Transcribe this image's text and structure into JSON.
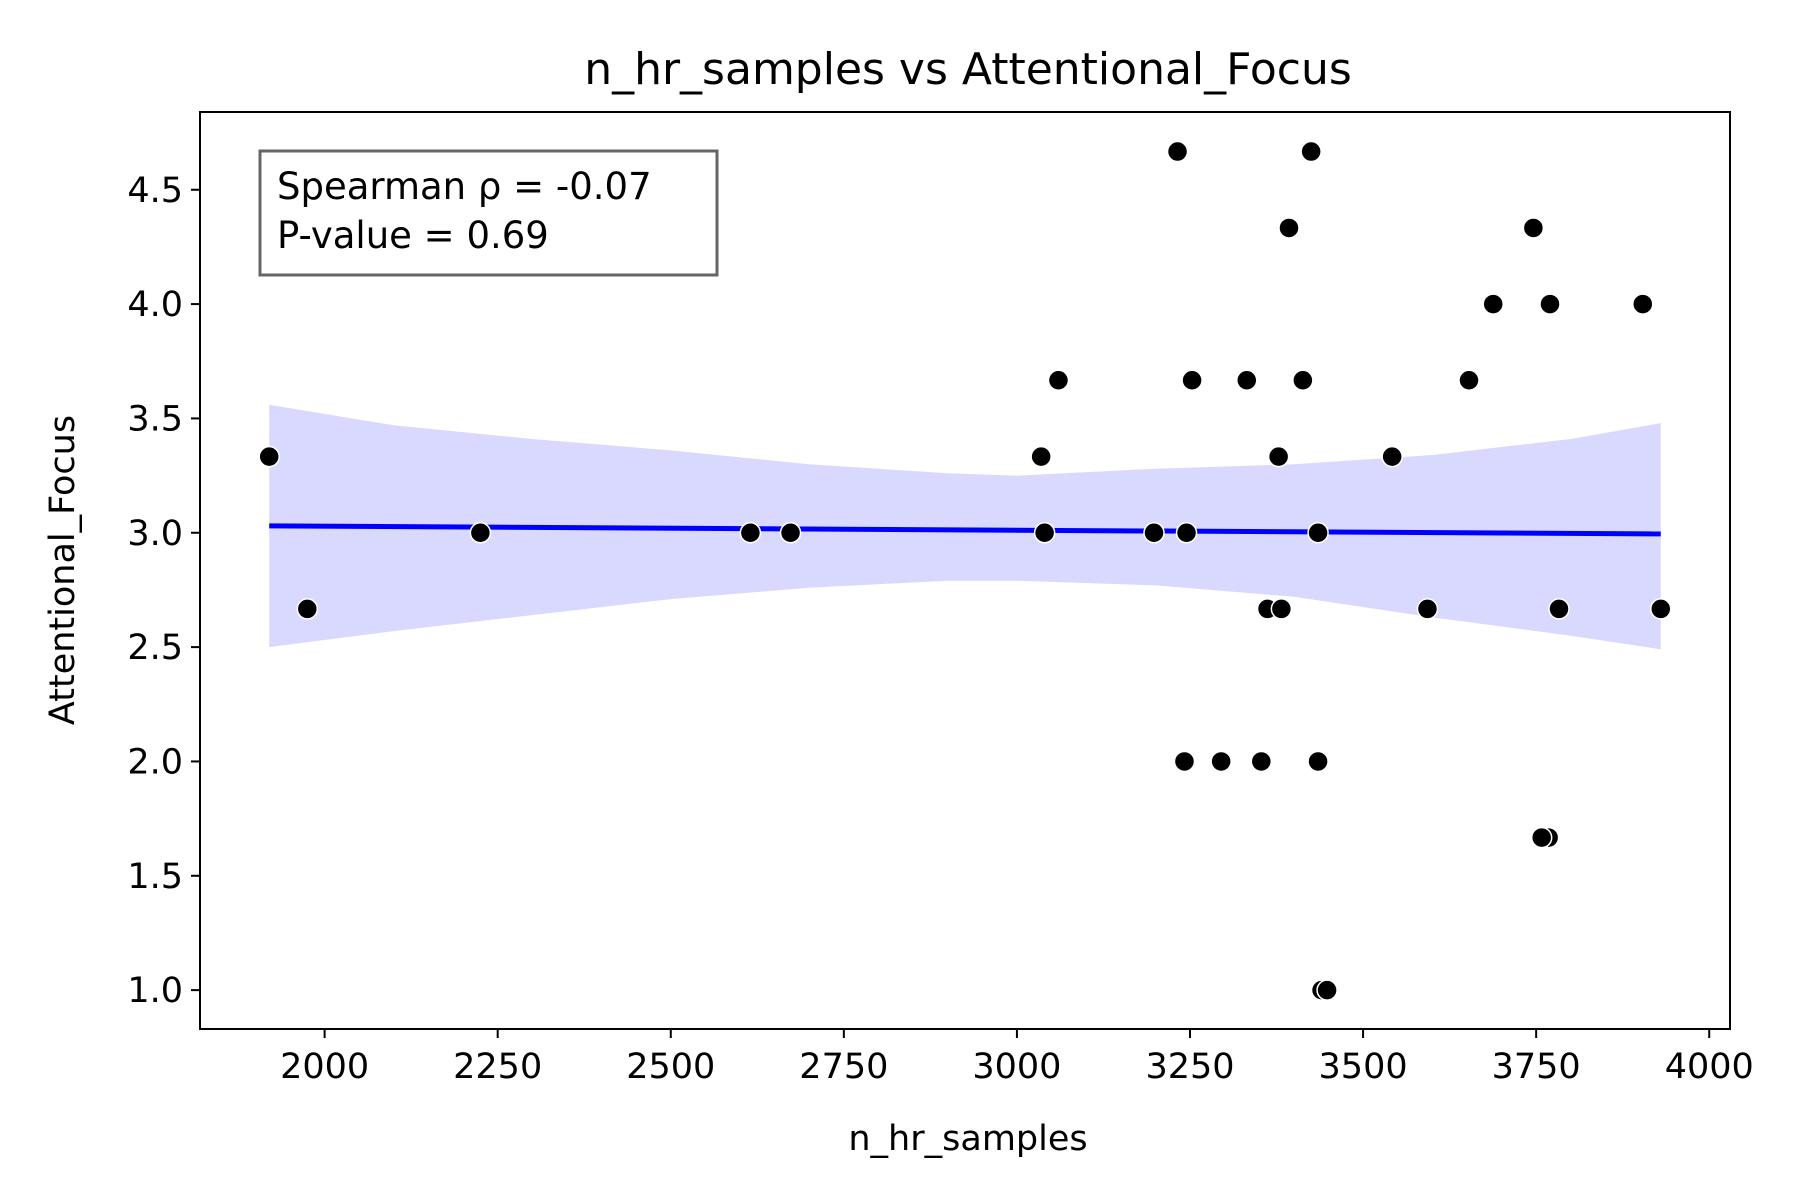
{
  "chart_data": {
    "type": "scatter",
    "title": "n_hr_samples vs Attentional_Focus",
    "xlabel": "n_hr_samples",
    "ylabel": "Attentional_Focus",
    "xlim": [
      1820,
      4030
    ],
    "ylim": [
      0.83,
      4.84
    ],
    "xticks": [
      2000,
      2250,
      2500,
      2750,
      3000,
      3250,
      3500,
      3750,
      4000
    ],
    "yticks": [
      1.0,
      1.5,
      2.0,
      2.5,
      3.0,
      3.5,
      4.0,
      4.5
    ],
    "xtick_labels": [
      "2000",
      "2250",
      "2500",
      "2750",
      "3000",
      "3250",
      "3500",
      "3750",
      "4000"
    ],
    "ytick_labels": [
      "1.0",
      "1.5",
      "2.0",
      "2.5",
      "3.0",
      "3.5",
      "4.0",
      "4.5"
    ],
    "grid": false,
    "colors": {
      "points": "#000000",
      "regression_line": "#0000ff",
      "confidence_band": "#d9d9ff",
      "annotation_border": "#666666"
    },
    "annotation": {
      "line1": "Spearman ρ = -0.07",
      "line2": "P-value = 0.69",
      "placement": "top-left"
    },
    "points": [
      {
        "x": 1920,
        "y": 3.333
      },
      {
        "x": 1975,
        "y": 2.667
      },
      {
        "x": 2225,
        "y": 3.0
      },
      {
        "x": 2615,
        "y": 3.0
      },
      {
        "x": 2673,
        "y": 3.0
      },
      {
        "x": 3035,
        "y": 3.333
      },
      {
        "x": 3060,
        "y": 3.667
      },
      {
        "x": 3040,
        "y": 3.0
      },
      {
        "x": 3232,
        "y": 4.667
      },
      {
        "x": 3198,
        "y": 3.0
      },
      {
        "x": 3245,
        "y": 3.0
      },
      {
        "x": 3253,
        "y": 3.667
      },
      {
        "x": 3242,
        "y": 2.0
      },
      {
        "x": 3295,
        "y": 2.0
      },
      {
        "x": 3332,
        "y": 3.667
      },
      {
        "x": 3353,
        "y": 2.0
      },
      {
        "x": 3362,
        "y": 2.667
      },
      {
        "x": 3378,
        "y": 3.333
      },
      {
        "x": 3382,
        "y": 2.667
      },
      {
        "x": 3393,
        "y": 4.333
      },
      {
        "x": 3413,
        "y": 3.667
      },
      {
        "x": 3425,
        "y": 4.667
      },
      {
        "x": 3435,
        "y": 3.0
      },
      {
        "x": 3435,
        "y": 2.0
      },
      {
        "x": 3440,
        "y": 1.0
      },
      {
        "x": 3448,
        "y": 1.0
      },
      {
        "x": 3542,
        "y": 3.333
      },
      {
        "x": 3593,
        "y": 2.667
      },
      {
        "x": 3653,
        "y": 3.667
      },
      {
        "x": 3688,
        "y": 4.0
      },
      {
        "x": 3746,
        "y": 4.333
      },
      {
        "x": 3768,
        "y": 1.667
      },
      {
        "x": 3758,
        "y": 1.667
      },
      {
        "x": 3770,
        "y": 4.0
      },
      {
        "x": 3783,
        "y": 2.667
      },
      {
        "x": 3904,
        "y": 4.0
      },
      {
        "x": 3930,
        "y": 2.667
      }
    ],
    "regression_line": {
      "x": [
        1920,
        3930
      ],
      "y": [
        3.03,
        2.995
      ]
    },
    "confidence_band": {
      "x": [
        1920,
        2100,
        2300,
        2500,
        2700,
        2900,
        3000,
        3200,
        3400,
        3600,
        3800,
        3930
      ],
      "upper": [
        3.56,
        3.47,
        3.41,
        3.36,
        3.3,
        3.26,
        3.25,
        3.28,
        3.3,
        3.34,
        3.41,
        3.48
      ],
      "lower": [
        2.5,
        2.57,
        2.64,
        2.71,
        2.76,
        2.79,
        2.79,
        2.77,
        2.72,
        2.63,
        2.55,
        2.49
      ]
    }
  }
}
